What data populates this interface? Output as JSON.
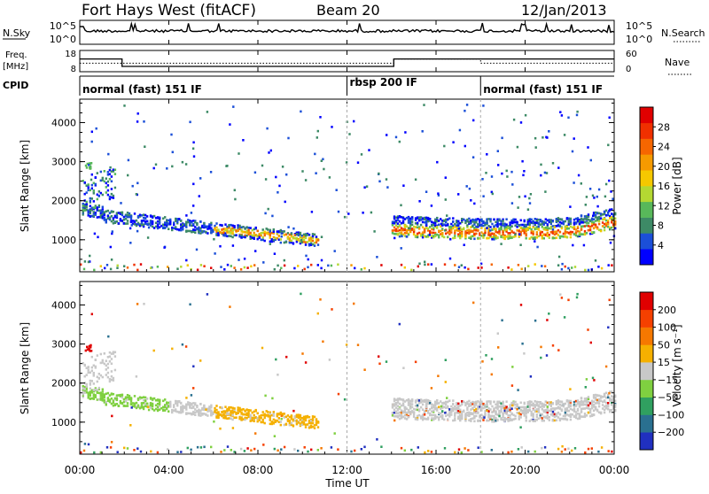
{
  "header": {
    "station": "Fort Hays West (fitACF)",
    "beam": "Beam 20",
    "date": "12/Jan/2013"
  },
  "chart_data": [
    {
      "type": "line",
      "panel": "noise",
      "left_label": "N.Sky",
      "right_label": "N.Search",
      "left_ticks": [
        "10^5",
        "10^0"
      ],
      "right_ticks": [
        "10^5",
        "10^0"
      ],
      "xlim": [
        0,
        24
      ]
    },
    {
      "type": "line",
      "panel": "frequency",
      "left_label_lines": [
        "Freq.",
        "[MHz]"
      ],
      "right_label": "Nave",
      "left_ticks": [
        18,
        8
      ],
      "right_ticks": [
        60,
        0
      ],
      "freq_series": {
        "x": [
          0,
          1.9,
          1.9,
          14.1,
          14.1,
          24
        ],
        "y": [
          14,
          14,
          10.5,
          10.5,
          14,
          14
        ]
      },
      "nave_series": {
        "x": [
          0,
          1.9,
          1.9,
          14.1,
          14.1,
          18,
          18,
          24
        ],
        "y": [
          12,
          12,
          12,
          12,
          14,
          14,
          12,
          12
        ]
      },
      "xlim": [
        0,
        24
      ]
    },
    {
      "type": "table",
      "panel": "cpid",
      "label": "CPID",
      "segments": [
        {
          "start": 0,
          "label": "normal (fast) 151 IF"
        },
        {
          "start": 12,
          "label": "rbsp 200 IF"
        },
        {
          "start": 18,
          "label": "normal (fast) 151 IF"
        }
      ]
    },
    {
      "type": "heatmap",
      "panel": "power",
      "ylabel": "Slant Range [km]",
      "yticks": [
        1000,
        2000,
        3000,
        4000
      ],
      "ylim": [
        180,
        4600
      ],
      "xlim": [
        0,
        24
      ],
      "colorbar_label": "Power [dB]",
      "colorbar_ticks": [
        "28",
        "24",
        "20",
        "16",
        "12",
        "8",
        "4"
      ],
      "colors": [
        "#0000ff",
        "#1b4fd8",
        "#3d8a66",
        "#58b85a",
        "#b4d832",
        "#f5c800",
        "#f59a00",
        "#f56600",
        "#f03000",
        "#e00000"
      ],
      "bands": [
        {
          "x0": 0.1,
          "x1": 10.7,
          "y_start": 1700,
          "y_end": 1000,
          "thickness": 280,
          "value_range": [
            4,
            20
          ]
        },
        {
          "x0": 14.0,
          "x1": 24.0,
          "y_start": 1380,
          "y_end": 1460,
          "thickness": 500,
          "value_range": [
            8,
            28
          ]
        }
      ]
    },
    {
      "type": "heatmap",
      "panel": "velocity",
      "ylabel": "Slant Range [km]",
      "yticks": [
        1000,
        2000,
        3000,
        4000
      ],
      "ylim": [
        180,
        4600
      ],
      "xlim": [
        0,
        24
      ],
      "colorbar_label": "Velocity [m s⁻¹]",
      "colorbar_ticks": [
        "200",
        "100",
        "50",
        "15",
        "−15",
        "−50",
        "−100",
        "−200"
      ],
      "colors": [
        "#2030c0",
        "#2a7090",
        "#30a060",
        "#7fd040",
        "#c8c8c8",
        "#f5b000",
        "#f57800",
        "#f54000",
        "#e00000"
      ],
      "xticks": [
        "00:00",
        "04:00",
        "08:00",
        "12:00",
        "16:00",
        "20:00",
        "00:00"
      ],
      "xtick_hours": [
        0,
        4,
        8,
        12,
        16,
        20,
        24
      ],
      "xlabel": "Time UT"
    }
  ]
}
